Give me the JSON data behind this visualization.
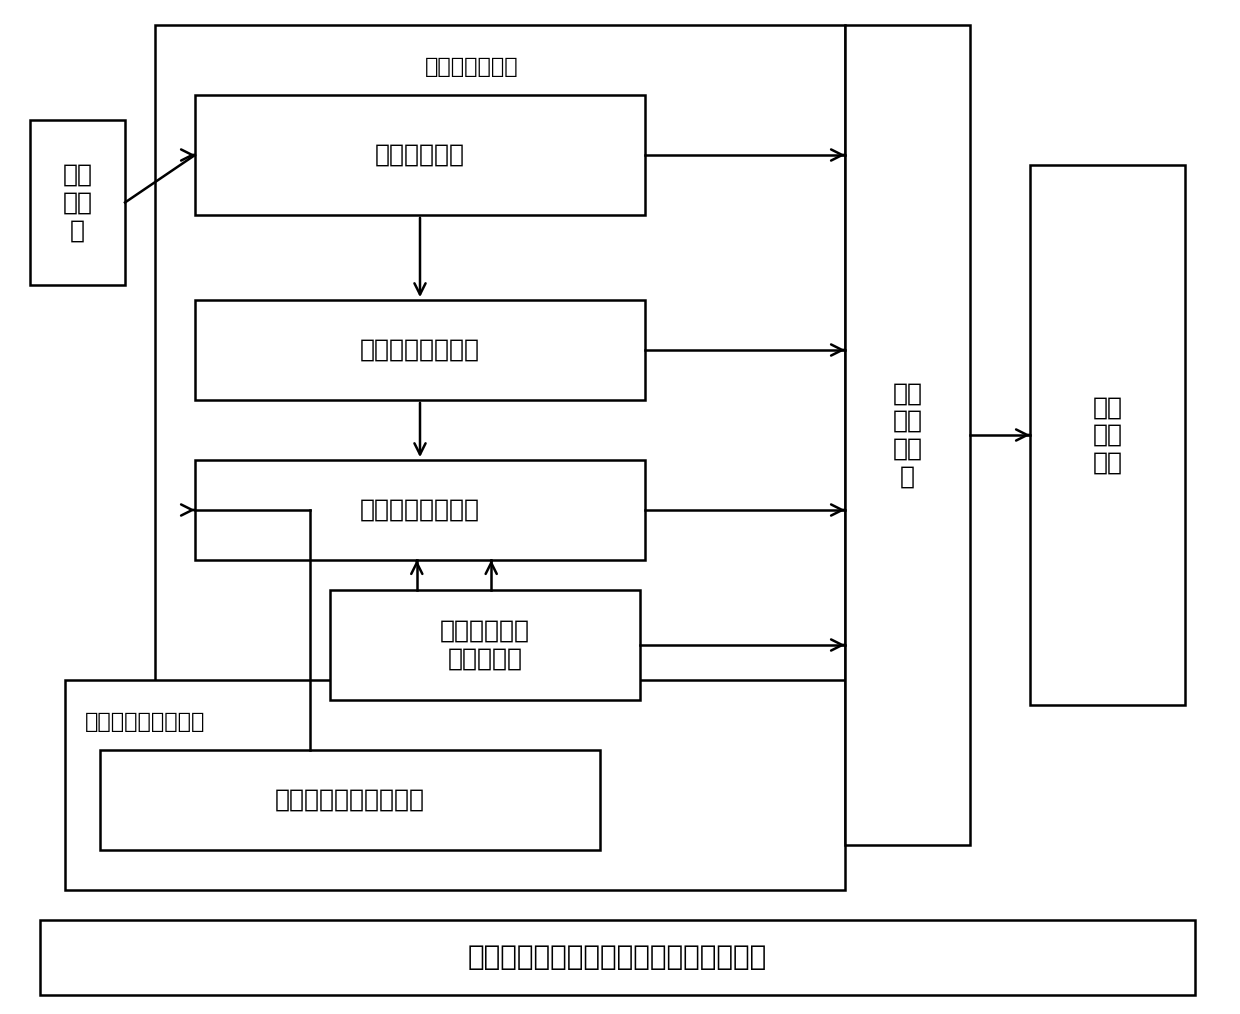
{
  "title": "反馈控制和顺馈补偿结合的复合控温系统",
  "sensor_label": "测温\n传感\n器",
  "feedback_region_label": "温度偏差反馈：",
  "feedforward_region_label": "外热流内热源顺馈：",
  "box1_label": "温度测量模块",
  "box2_label": "控温周期调整模块",
  "box3_label": "加热时间控制模块",
  "box4_label": "可分辨加热时\n间设置模块",
  "box5_label": "外热流内热源加权模块",
  "box6_label": "电加\n热驱\n动模\n块",
  "box7_label": "热控\n实施\n模块",
  "bg_color": "#ffffff",
  "line_color": "#000000",
  "font_size_box": 18,
  "font_size_label": 16,
  "font_size_title": 20
}
